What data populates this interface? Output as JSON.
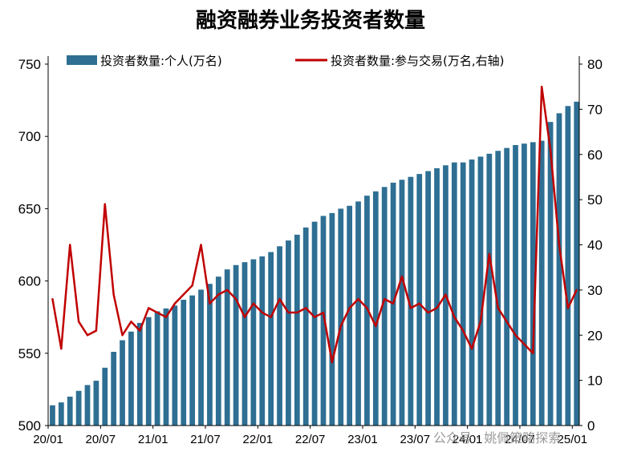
{
  "chart_data": {
    "type": "bar+line",
    "title": "融资融券业务投资者数量",
    "x_ticks": [
      "20/01",
      "20/07",
      "21/01",
      "21/07",
      "22/01",
      "22/07",
      "23/01",
      "23/07",
      "24/01",
      "24/07",
      "25/01"
    ],
    "y_left": {
      "min": 500,
      "max": 750,
      "ticks": [
        500,
        550,
        600,
        650,
        700,
        750
      ]
    },
    "y_right": {
      "min": 0,
      "max": 80,
      "ticks": [
        0,
        10,
        20,
        30,
        40,
        50,
        60,
        70,
        80
      ]
    },
    "series": [
      {
        "name": "投资者数量:个人(万名)",
        "type": "bar",
        "axis": "left",
        "color": "#2e6f93",
        "frequency": "monthly",
        "x": [
          "20/01",
          "20/02",
          "20/03",
          "20/04",
          "20/05",
          "20/06",
          "20/07",
          "20/08",
          "20/09",
          "20/10",
          "20/11",
          "20/12",
          "21/01",
          "21/02",
          "21/03",
          "21/04",
          "21/05",
          "21/06",
          "21/07",
          "21/08",
          "21/09",
          "21/10",
          "21/11",
          "21/12",
          "22/01",
          "22/02",
          "22/03",
          "22/04",
          "22/05",
          "22/06",
          "22/07",
          "22/08",
          "22/09",
          "22/10",
          "22/11",
          "22/12",
          "23/01",
          "23/02",
          "23/03",
          "23/04",
          "23/05",
          "23/06",
          "23/07",
          "23/08",
          "23/09",
          "23/10",
          "23/11",
          "23/12",
          "24/01",
          "24/02",
          "24/03",
          "24/04",
          "24/05",
          "24/06",
          "24/07",
          "24/08",
          "24/09",
          "24/10",
          "24/11",
          "24/12",
          "25/01"
        ],
        "values": [
          514,
          516,
          520,
          524,
          528,
          531,
          540,
          551,
          559,
          565,
          571,
          575,
          579,
          581,
          583,
          587,
          590,
          594,
          598,
          603,
          608,
          611,
          613,
          615,
          617,
          620,
          624,
          628,
          632,
          637,
          641,
          645,
          647,
          650,
          652,
          655,
          659,
          662,
          665,
          668,
          670,
          672,
          674,
          676,
          678,
          680,
          682,
          682,
          684,
          686,
          688,
          690,
          692,
          694,
          695,
          696,
          697,
          710,
          716,
          721,
          724
        ]
      },
      {
        "name": "投资者数量:参与交易(万名,右轴)",
        "type": "line",
        "axis": "right",
        "color": "#c00000",
        "frequency": "monthly (approximate trace of weekly data)",
        "x": [
          "20/01",
          "20/02",
          "20/03",
          "20/04",
          "20/05",
          "20/06",
          "20/07",
          "20/08",
          "20/09",
          "20/10",
          "20/11",
          "20/12",
          "21/01",
          "21/02",
          "21/03",
          "21/04",
          "21/05",
          "21/06",
          "21/07",
          "21/08",
          "21/09",
          "21/10",
          "21/11",
          "21/12",
          "22/01",
          "22/02",
          "22/03",
          "22/04",
          "22/05",
          "22/06",
          "22/07",
          "22/08",
          "22/09",
          "22/10",
          "22/11",
          "22/12",
          "23/01",
          "23/02",
          "23/03",
          "23/04",
          "23/05",
          "23/06",
          "23/07",
          "23/08",
          "23/09",
          "23/10",
          "23/11",
          "23/12",
          "24/01",
          "24/02",
          "24/03",
          "24/04",
          "24/05",
          "24/06",
          "24/07",
          "24/08",
          "24/09",
          "24/10",
          "24/11",
          "24/12",
          "25/01"
        ],
        "values": [
          28,
          17,
          40,
          23,
          20,
          21,
          49,
          29,
          20,
          23,
          21,
          26,
          25,
          24,
          27,
          29,
          31,
          40,
          27,
          29,
          30,
          28,
          24,
          27,
          25,
          24,
          28,
          25,
          25,
          26,
          24,
          25,
          14,
          22,
          26,
          28,
          26,
          22,
          28,
          27,
          33,
          26,
          27,
          25,
          26,
          29,
          24,
          21,
          17,
          23,
          38,
          26,
          23,
          20,
          18,
          16,
          75,
          61,
          40,
          26,
          30
        ]
      }
    ],
    "legend_position": "top"
  },
  "watermark": {
    "text": "公众号 · 姚佩策略探索"
  }
}
